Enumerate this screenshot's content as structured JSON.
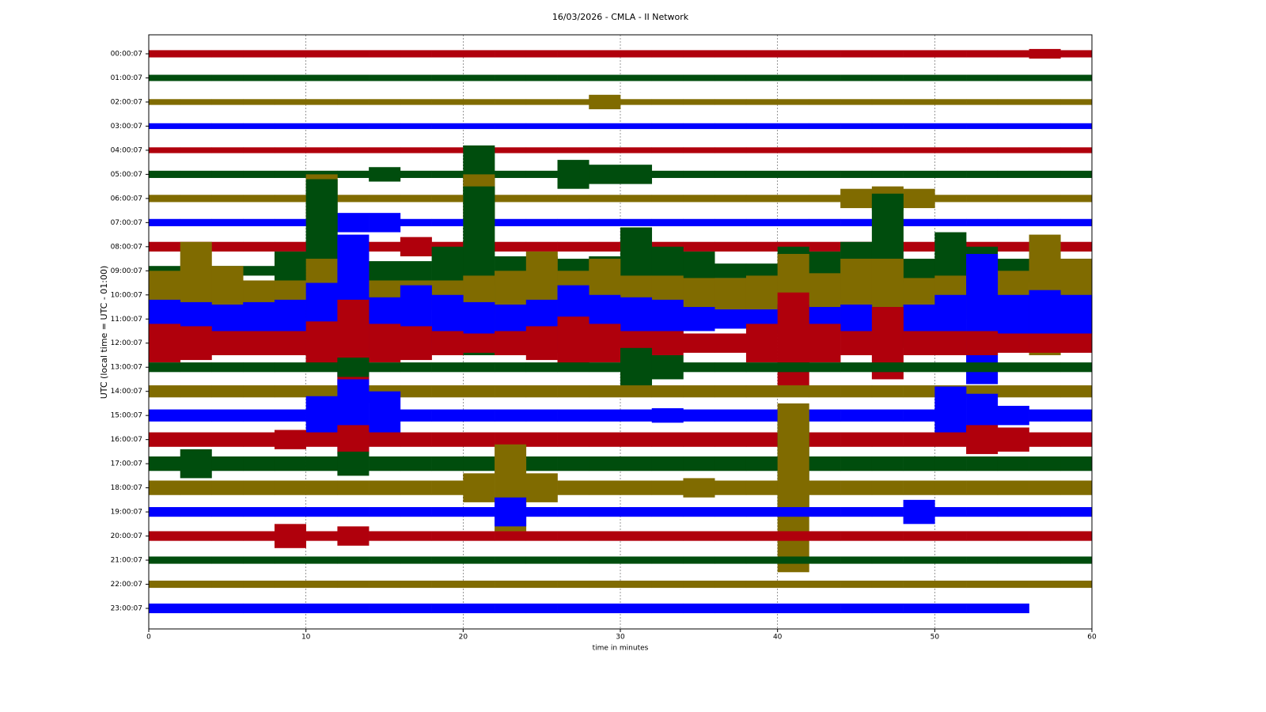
{
  "chart_data": {
    "type": "helicorder",
    "title": "16/03/2026 - CMLA - II Network",
    "ylabel": "UTC (local time = UTC - 01:00)",
    "xlabel": "time in minutes",
    "xlim": [
      0,
      60
    ],
    "xticks": [
      0,
      10,
      20,
      30,
      40,
      50,
      60
    ],
    "grid": true,
    "x": [
      0,
      2,
      4,
      6,
      8,
      10,
      12,
      14,
      16,
      18,
      20,
      22,
      24,
      26,
      28,
      30,
      32,
      34,
      36,
      38,
      40,
      42,
      44,
      46,
      48,
      50,
      52,
      54,
      56,
      58
    ],
    "series": [
      {
        "name": "00:00:07",
        "color": "#b0000c",
        "values": [
          0.15,
          0.15,
          0.15,
          0.15,
          0.15,
          0.15,
          0.15,
          0.15,
          0.15,
          0.15,
          0.15,
          0.15,
          0.15,
          0.15,
          0.15,
          0.15,
          0.15,
          0.15,
          0.15,
          0.15,
          0.15,
          0.15,
          0.15,
          0.15,
          0.15,
          0.15,
          0.15,
          0.15,
          0.2,
          0.15
        ]
      },
      {
        "name": "01:00:07",
        "color": "#004d0d",
        "values": [
          0.13,
          0.13,
          0.13,
          0.13,
          0.13,
          0.13,
          0.13,
          0.13,
          0.13,
          0.13,
          0.13,
          0.13,
          0.13,
          0.13,
          0.13,
          0.13,
          0.13,
          0.13,
          0.13,
          0.13,
          0.13,
          0.13,
          0.13,
          0.13,
          0.13,
          0.13,
          0.13,
          0.13,
          0.13,
          0.13
        ]
      },
      {
        "name": "02:00:07",
        "color": "#806b00",
        "values": [
          0.12,
          0.12,
          0.12,
          0.12,
          0.12,
          0.12,
          0.12,
          0.12,
          0.12,
          0.12,
          0.12,
          0.12,
          0.12,
          0.12,
          0.3,
          0.12,
          0.12,
          0.12,
          0.12,
          0.12,
          0.12,
          0.12,
          0.12,
          0.12,
          0.12,
          0.12,
          0.12,
          0.12,
          0.12,
          0.12
        ]
      },
      {
        "name": "03:00:07",
        "color": "#0000ff",
        "values": [
          0.12,
          0.12,
          0.12,
          0.12,
          0.12,
          0.12,
          0.12,
          0.12,
          0.12,
          0.12,
          0.12,
          0.12,
          0.12,
          0.12,
          0.12,
          0.12,
          0.12,
          0.12,
          0.12,
          0.12,
          0.12,
          0.12,
          0.12,
          0.12,
          0.12,
          0.12,
          0.12,
          0.12,
          0.12,
          0.12
        ]
      },
      {
        "name": "04:00:07",
        "color": "#b0000c",
        "values": [
          0.12,
          0.12,
          0.12,
          0.12,
          0.12,
          0.12,
          0.12,
          0.12,
          0.12,
          0.12,
          0.12,
          0.12,
          0.12,
          0.12,
          0.12,
          0.12,
          0.12,
          0.12,
          0.12,
          0.12,
          0.12,
          0.12,
          0.12,
          0.12,
          0.12,
          0.12,
          0.12,
          0.12,
          0.12,
          0.12
        ]
      },
      {
        "name": "05:00:07",
        "color": "#004d0d",
        "values": [
          0.15,
          0.15,
          0.15,
          0.15,
          0.15,
          0.15,
          0.15,
          0.3,
          0.15,
          0.15,
          1.2,
          0.15,
          0.15,
          0.6,
          0.4,
          0.4,
          0.15,
          0.15,
          0.15,
          0.15,
          0.15,
          0.15,
          0.15,
          0.15,
          0.15,
          0.15,
          0.15,
          0.15,
          0.15,
          0.15
        ]
      },
      {
        "name": "06:00:07",
        "color": "#806b00",
        "values": [
          0.15,
          0.15,
          0.15,
          0.15,
          0.15,
          1.0,
          0.15,
          0.15,
          0.15,
          0.15,
          1.0,
          0.15,
          0.15,
          0.15,
          0.15,
          0.15,
          0.15,
          0.15,
          0.15,
          0.15,
          0.15,
          0.15,
          0.4,
          0.5,
          0.4,
          0.15,
          0.15,
          0.15,
          0.15,
          0.15
        ]
      },
      {
        "name": "07:00:07",
        "color": "#0000ff",
        "values": [
          0.15,
          0.15,
          0.15,
          0.15,
          0.15,
          0.15,
          0.4,
          0.4,
          0.15,
          0.15,
          0.15,
          0.15,
          0.15,
          0.15,
          0.15,
          0.15,
          0.15,
          0.15,
          0.15,
          0.15,
          0.15,
          0.15,
          0.15,
          0.15,
          0.15,
          0.15,
          0.15,
          0.15,
          0.15,
          0.15
        ]
      },
      {
        "name": "08:00:07",
        "color": "#b0000c",
        "values": [
          0.2,
          0.2,
          0.2,
          0.2,
          0.2,
          0.2,
          0.2,
          0.2,
          0.4,
          0.2,
          0.2,
          0.2,
          0.2,
          0.2,
          0.2,
          0.2,
          0.2,
          0.2,
          0.2,
          0.2,
          0.2,
          0.2,
          0.2,
          0.2,
          0.2,
          0.2,
          0.2,
          0.2,
          0.2,
          0.2
        ]
      },
      {
        "name": "09:00:07",
        "color": "#004d0d",
        "values": [
          0.2,
          0.2,
          0.2,
          0.2,
          0.8,
          3.8,
          0.8,
          0.4,
          0.4,
          1.0,
          3.5,
          0.6,
          0.6,
          0.5,
          0.6,
          1.8,
          1.0,
          0.8,
          0.3,
          0.3,
          1.0,
          0.8,
          1.2,
          3.2,
          0.5,
          1.6,
          1.0,
          0.5,
          0.5,
          0.5
        ]
      },
      {
        "name": "10:00:07",
        "color": "#806b00",
        "values": [
          1.0,
          2.2,
          1.2,
          0.6,
          0.6,
          1.5,
          1.0,
          0.6,
          0.6,
          0.6,
          0.8,
          1.0,
          1.8,
          1.0,
          1.5,
          0.8,
          0.8,
          0.7,
          0.7,
          0.8,
          1.7,
          0.9,
          1.5,
          1.5,
          0.7,
          0.8,
          1.0,
          1.0,
          2.5,
          1.5
        ]
      },
      {
        "name": "11:00:07",
        "color": "#0000ff",
        "values": [
          0.8,
          0.7,
          0.6,
          0.7,
          0.8,
          1.5,
          3.5,
          0.9,
          1.4,
          1.0,
          0.7,
          0.6,
          0.8,
          1.4,
          1.0,
          0.9,
          0.8,
          0.5,
          0.4,
          0.4,
          0.6,
          0.5,
          0.6,
          0.5,
          0.6,
          1.0,
          2.7,
          1.0,
          1.2,
          1.0
        ]
      },
      {
        "name": "12:00:07",
        "color": "#b0000c",
        "values": [
          0.8,
          0.7,
          0.5,
          0.5,
          0.5,
          0.9,
          1.8,
          0.8,
          0.7,
          0.5,
          0.4,
          0.5,
          0.7,
          1.1,
          0.8,
          0.5,
          0.5,
          0.4,
          0.4,
          0.8,
          2.1,
          0.8,
          0.5,
          1.5,
          0.5,
          0.5,
          0.5,
          0.4,
          0.4,
          0.4
        ]
      },
      {
        "name": "13:00:07",
        "color": "#004d0d",
        "values": [
          0.2,
          0.2,
          0.2,
          0.2,
          0.2,
          0.2,
          0.4,
          0.2,
          0.2,
          0.2,
          0.2,
          0.2,
          0.2,
          0.2,
          0.2,
          0.8,
          0.5,
          0.2,
          0.2,
          0.2,
          0.2,
          0.2,
          0.2,
          0.2,
          0.2,
          0.2,
          0.2,
          0.2,
          0.2,
          0.2
        ]
      },
      {
        "name": "14:00:07",
        "color": "#806b00",
        "values": [
          0.25,
          0.25,
          0.25,
          0.25,
          0.25,
          0.25,
          0.25,
          0.25,
          0.25,
          0.25,
          0.25,
          0.25,
          0.25,
          0.25,
          0.25,
          0.25,
          0.25,
          0.25,
          0.25,
          0.25,
          0.25,
          0.25,
          0.25,
          0.25,
          0.25,
          0.25,
          0.25,
          0.25,
          0.25,
          0.25
        ]
      },
      {
        "name": "15:00:07",
        "color": "#0000ff",
        "values": [
          0.25,
          0.25,
          0.25,
          0.25,
          0.25,
          0.8,
          1.5,
          1.0,
          0.25,
          0.25,
          0.25,
          0.25,
          0.25,
          0.25,
          0.25,
          0.25,
          0.3,
          0.25,
          0.25,
          0.25,
          0.25,
          0.25,
          0.25,
          0.25,
          0.25,
          1.2,
          0.9,
          0.4,
          0.25,
          0.25
        ]
      },
      {
        "name": "16:00:07",
        "color": "#b0000c",
        "values": [
          0.3,
          0.3,
          0.3,
          0.3,
          0.4,
          0.3,
          0.6,
          0.3,
          0.3,
          0.3,
          0.3,
          0.3,
          0.3,
          0.3,
          0.3,
          0.3,
          0.3,
          0.3,
          0.3,
          0.3,
          0.3,
          0.3,
          0.3,
          0.3,
          0.3,
          0.3,
          0.6,
          0.5,
          0.3,
          0.3
        ]
      },
      {
        "name": "17:00:07",
        "color": "#004d0d",
        "values": [
          0.3,
          0.6,
          0.3,
          0.3,
          0.3,
          0.3,
          0.5,
          0.3,
          0.3,
          0.3,
          0.3,
          0.3,
          0.3,
          0.3,
          0.3,
          0.3,
          0.3,
          0.3,
          0.3,
          0.3,
          2.0,
          0.3,
          0.3,
          0.3,
          0.3,
          0.3,
          0.3,
          0.3,
          0.3,
          0.3
        ]
      },
      {
        "name": "18:00:07",
        "color": "#806b00",
        "values": [
          0.3,
          0.3,
          0.3,
          0.3,
          0.3,
          0.3,
          0.3,
          0.3,
          0.3,
          0.3,
          0.6,
          1.8,
          0.6,
          0.3,
          0.3,
          0.3,
          0.3,
          0.4,
          0.3,
          0.3,
          3.5,
          0.3,
          0.3,
          0.3,
          0.3,
          0.3,
          0.3,
          0.3,
          0.3,
          0.3
        ]
      },
      {
        "name": "19:00:07",
        "color": "#0000ff",
        "values": [
          0.2,
          0.2,
          0.2,
          0.2,
          0.2,
          0.2,
          0.2,
          0.2,
          0.2,
          0.2,
          0.2,
          0.6,
          0.2,
          0.2,
          0.2,
          0.2,
          0.2,
          0.2,
          0.2,
          0.2,
          0.2,
          0.2,
          0.2,
          0.2,
          0.5,
          0.2,
          0.2,
          0.2,
          0.2,
          0.2
        ]
      },
      {
        "name": "20:00:07",
        "color": "#b0000c",
        "values": [
          0.2,
          0.2,
          0.2,
          0.2,
          0.5,
          0.2,
          0.4,
          0.2,
          0.2,
          0.2,
          0.2,
          0.2,
          0.2,
          0.2,
          0.2,
          0.2,
          0.2,
          0.2,
          0.2,
          0.2,
          0.2,
          0.2,
          0.2,
          0.2,
          0.2,
          0.2,
          0.2,
          0.2,
          0.2,
          0.2
        ]
      },
      {
        "name": "21:00:07",
        "color": "#004d0d",
        "values": [
          0.15,
          0.15,
          0.15,
          0.15,
          0.15,
          0.15,
          0.15,
          0.15,
          0.15,
          0.15,
          0.15,
          0.15,
          0.15,
          0.15,
          0.15,
          0.15,
          0.15,
          0.15,
          0.15,
          0.15,
          0.15,
          0.15,
          0.15,
          0.15,
          0.15,
          0.15,
          0.15,
          0.15,
          0.15,
          0.15
        ]
      },
      {
        "name": "22:00:07",
        "color": "#806b00",
        "values": [
          0.15,
          0.15,
          0.15,
          0.15,
          0.15,
          0.15,
          0.15,
          0.15,
          0.15,
          0.15,
          0.15,
          0.15,
          0.15,
          0.15,
          0.15,
          0.15,
          0.15,
          0.15,
          0.15,
          0.15,
          0.15,
          0.15,
          0.15,
          0.15,
          0.15,
          0.15,
          0.15,
          0.15,
          0.15,
          0.15
        ]
      },
      {
        "name": "23:00:07",
        "color": "#0000ff",
        "values": [
          0.2,
          0.2,
          0.2,
          0.2,
          0.2,
          0.2,
          0.2,
          0.2,
          0.2,
          0.2,
          0.2,
          0.2,
          0.2,
          0.2,
          0.2,
          0.2,
          0.2,
          0.2,
          0.2,
          0.2,
          0.2,
          0.2,
          0.2,
          0.2,
          0.2,
          0.2,
          0.2,
          0.2,
          null,
          null
        ]
      }
    ]
  }
}
